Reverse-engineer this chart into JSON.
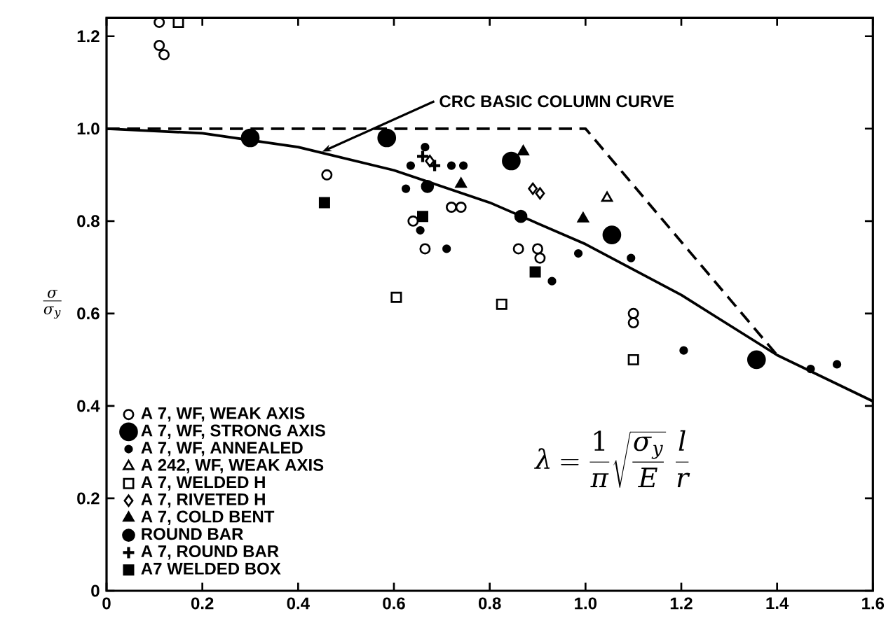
{
  "chart_data": {
    "type": "scatter",
    "ylabel": "\\frac{\\sigma}{\\sigma_y}",
    "xlim": [
      0,
      1.6
    ],
    "ylim": [
      0,
      1.24
    ],
    "xticks": [
      0,
      0.2,
      0.4,
      0.6,
      0.8,
      {
        "value": 1.0,
        "label": "1.0"
      },
      1.2,
      1.4,
      1.6
    ],
    "yticks": [
      0,
      0.2,
      0.4,
      0.6,
      0.8,
      {
        "value": 1.0,
        "label": "1.0"
      },
      1.2
    ],
    "legend": "bottom left",
    "grid": false,
    "annotations": [
      {
        "text": "CRC BASIC COLUMN CURVE",
        "x": 0.45,
        "y": 0.95
      },
      "\\lambda = \\frac{1}{\\pi}\\sqrt{\\frac{\\sigma_y}{E}}\\;\\frac{l}{r}"
    ],
    "series": [
      {
        "type": "line",
        "color": "#000000",
        "line_style": "dashed",
        "x": [
          0,
          1.0,
          1.4
        ],
        "values": [
          1.0,
          1.0,
          0.51
        ]
      },
      {
        "type": "line",
        "color": "#000000",
        "line_style": "solid",
        "x": [
          0,
          0.2,
          0.4,
          0.6,
          0.8,
          1.0,
          1.2,
          1.4,
          1.6
        ],
        "values": [
          1.0,
          0.99,
          0.96,
          0.91,
          0.84,
          0.75,
          0.64,
          0.51,
          0.41
        ]
      },
      {
        "name": "A 7, WF, WEAK AXIS",
        "color": "#000000",
        "marker": "circle",
        "x": [
          0.11,
          0.11,
          0.12,
          0.46,
          0.64,
          0.665,
          0.72,
          0.74,
          0.86,
          0.9,
          0.905,
          1.1,
          1.1
        ],
        "values": [
          1.23,
          1.18,
          1.16,
          0.9,
          0.8,
          0.74,
          0.83,
          0.83,
          0.74,
          0.74,
          0.72,
          0.58,
          0.6
        ]
      },
      {
        "name": "A 7, WF, STRONG AXIS",
        "color": "#000000",
        "marker": "circle",
        "x": [
          0.3,
          0.585,
          0.845,
          1.055,
          1.357
        ],
        "values": [
          0.98,
          0.98,
          0.93,
          0.77,
          0.5
        ]
      },
      {
        "name": "A 7, WF, ANNEALED",
        "color": "#000000",
        "marker": "circle",
        "x": [
          0.635,
          0.665,
          0.625,
          0.655,
          0.71,
          0.72,
          0.745,
          0.985,
          1.095,
          0.93,
          1.205,
          1.525,
          1.47
        ],
        "values": [
          0.92,
          0.96,
          0.87,
          0.78,
          0.74,
          0.92,
          0.92,
          0.73,
          0.72,
          0.67,
          0.52,
          0.49,
          0.48
        ]
      },
      {
        "name": "A 242, WF, WEAK AXIS",
        "color": "#000000",
        "marker": "triangle",
        "x": [
          1.045
        ],
        "values": [
          0.85
        ]
      },
      {
        "name": "A 7, WELDED H",
        "color": "#000000",
        "marker": "square",
        "x": [
          0.15,
          0.605,
          0.825,
          1.1
        ],
        "values": [
          1.23,
          0.635,
          0.62,
          0.5
        ]
      },
      {
        "name": "A 7, RIVETED H",
        "color": "#000000",
        "marker": "diamond",
        "x": [
          0.675,
          0.89,
          0.905
        ],
        "values": [
          0.93,
          0.87,
          0.86
        ]
      },
      {
        "name": "A 7, COLD BENT",
        "color": "#000000",
        "marker": "triangle",
        "x": [
          0.87,
          0.74,
          0.995
        ],
        "values": [
          0.95,
          0.88,
          0.805
        ]
      },
      {
        "name": "ROUND BAR",
        "color": "#000000",
        "marker": "circle",
        "x": [
          0.865,
          0.67
        ],
        "values": [
          0.81,
          0.875
        ]
      },
      {
        "name": "A 7, ROUND BAR",
        "color": "#000000",
        "marker": "cross",
        "x": [
          0.66,
          0.685
        ],
        "values": [
          0.94,
          0.92
        ]
      },
      {
        "name": "A7 WELDED BOX",
        "color": "#000000",
        "marker": "square",
        "x": [
          0.455,
          0.66,
          0.895
        ],
        "values": [
          0.84,
          0.81,
          0.69
        ]
      }
    ]
  }
}
